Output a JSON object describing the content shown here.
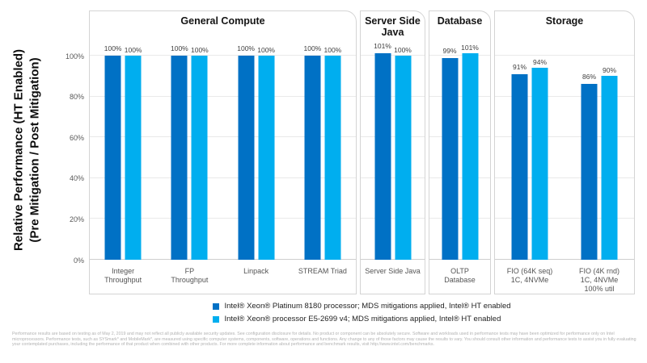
{
  "y_axis_title_line1": "Relative Performance (HT Enabled)",
  "y_axis_title_line2": "(Pre Mitigation / Post Mitigation)",
  "footnote": "Performance results are based on testing as of May 2, 2019 and may not reflect all publicly available security updates. See configuration disclosure for details. No product or component can be absolutely secure. Software and workloads used in performance tests may have been optimized for performance only on Intel microprocessors. Performance tests, such as SYSmark* and MobileMark*, are measured using specific computer systems, components, software, operations and functions. Any change to any of those factors may cause the results to vary. You should consult other information and performance tests to assist you in fully evaluating your contemplated purchases, including the performance of that product when combined with other products. For more complete information about performance and benchmark results, visit http://www.intel.com/benchmarks.",
  "chart_data": {
    "type": "bar",
    "title": "",
    "ylabel": "Relative Performance (HT Enabled) (Pre Mitigation / Post Mitigation)",
    "ylim": [
      0,
      110
    ],
    "yticks": [
      0,
      20,
      40,
      60,
      80,
      100
    ],
    "ytick_labels": [
      "0%",
      "20%",
      "40%",
      "60%",
      "80%",
      "100%"
    ],
    "grid": true,
    "legend_position": "bottom",
    "value_label_format": "{v}%",
    "categories": [
      "Integer Throughput",
      "FP Throughput",
      "Linpack",
      "STREAM Triad",
      "Server Side Java",
      "OLTP Database",
      "FIO (64K seq) 1C, 4NVMe",
      "FIO (4K rnd) 1C, 4NVMe 100% util"
    ],
    "series": [
      {
        "name": "Intel® Xeon® Platinum 8180 processor; MDS mitigations applied, Intel® HT enabled",
        "color": "#0071C5",
        "values": [
          100,
          100,
          100,
          100,
          101,
          99,
          91,
          86
        ]
      },
      {
        "name": "Intel® Xeon® processor E5-2699 v4; MDS mitigations applied, Intel® HT enabled",
        "color": "#00AEEF",
        "values": [
          100,
          100,
          100,
          100,
          100,
          101,
          94,
          90
        ]
      }
    ],
    "sections": [
      {
        "title": "General Compute",
        "groups": [
          {
            "category": "Integer Throughput",
            "label_lines": [
              "Integer",
              "Throughput"
            ],
            "values": [
              100,
              100
            ]
          },
          {
            "category": "FP Throughput",
            "label_lines": [
              "FP",
              "Throughput"
            ],
            "values": [
              100,
              100
            ]
          },
          {
            "category": "Linpack",
            "label_lines": [
              "Linpack"
            ],
            "values": [
              100,
              100
            ]
          },
          {
            "category": "STREAM Triad",
            "label_lines": [
              "STREAM Triad"
            ],
            "values": [
              100,
              100
            ]
          }
        ]
      },
      {
        "title": "Server Side Java",
        "groups": [
          {
            "category": "Server Side Java",
            "label_lines": [
              "Server Side Java"
            ],
            "values": [
              101,
              100
            ]
          }
        ]
      },
      {
        "title": "Database",
        "groups": [
          {
            "category": "OLTP Database",
            "label_lines": [
              "OLTP",
              "Database"
            ],
            "values": [
              99,
              101
            ]
          }
        ]
      },
      {
        "title": "Storage",
        "groups": [
          {
            "category": "FIO (64K seq) 1C, 4NVMe",
            "label_lines": [
              "FIO (64K seq)",
              "1C, 4NVMe"
            ],
            "values": [
              91,
              94
            ]
          },
          {
            "category": "FIO (4K rnd) 1C, 4NVMe 100% util",
            "label_lines": [
              "FIO (4K rnd)",
              "1C, 4NVMe",
              "100% util"
            ],
            "values": [
              86,
              90
            ]
          }
        ]
      }
    ]
  }
}
